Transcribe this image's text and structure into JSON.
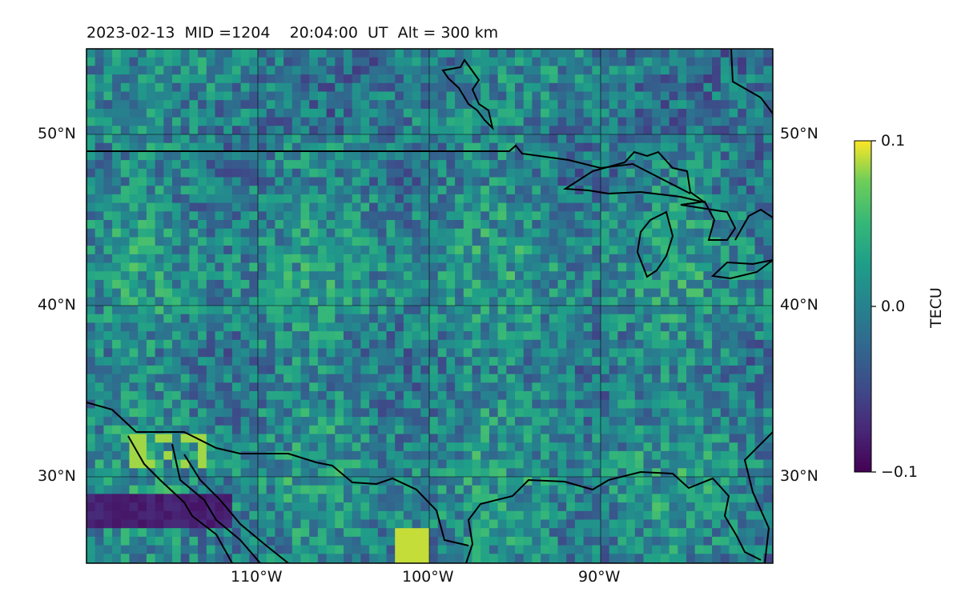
{
  "title": "2023-02-13  MID =1204    20:04:00  UT  Alt = 300 km",
  "map": {
    "lat_range": [
      25,
      55
    ],
    "lon_range": [
      -120,
      -80
    ],
    "lat_ticks": [
      "50°N",
      "40°N",
      "30°N"
    ],
    "lon_ticks": [
      "110°W",
      "100°W",
      "90°W"
    ],
    "colormap": "viridis",
    "grid": true
  },
  "colorbar": {
    "label": "TECU",
    "ticks": [
      "0.1",
      "0.0",
      "−0.1"
    ],
    "range": [
      -0.1,
      0.1
    ]
  }
}
